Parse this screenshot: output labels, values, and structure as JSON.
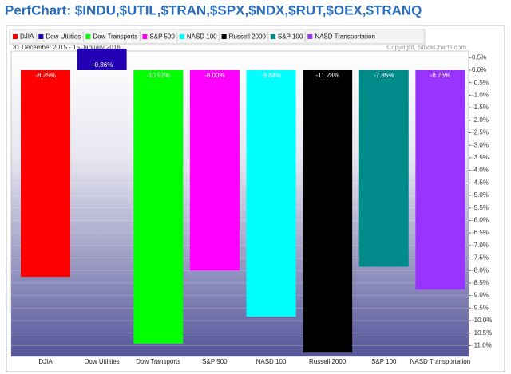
{
  "chart_data": {
    "type": "bar",
    "title": "PerfChart: $INDU,$UTIL,$TRAN,$SPX,$NDX,$RUT,$OEX,$TRANQ",
    "subtitle": "31 December 2015 - 15 January 2016",
    "annotation": "Copyright, StockCharts.com",
    "categories": [
      "DJIA",
      "Dow Utilities",
      "Dow Transports",
      "S&P 500",
      "NASD 100",
      "Russell 2000",
      "S&P 100",
      "NASD Transportation"
    ],
    "values": [
      -8.25,
      0.86,
      -10.92,
      -8.0,
      -9.84,
      -11.28,
      -7.85,
      -8.76
    ],
    "value_labels": [
      "-8.25%",
      "+0.86%",
      "-10.92%",
      "-8.00%",
      "-9.84%",
      "-11.28%",
      "-7.85%",
      "-8.76%"
    ],
    "colors": [
      "#ff0000",
      "#2200b4",
      "#00ff00",
      "#ff00ff",
      "#00ffff",
      "#000000",
      "#008b8b",
      "#9933ff"
    ],
    "ylim": [
      -11.4,
      0.7
    ],
    "yticks": [
      {
        "value": 0.5,
        "label": "0.5%"
      },
      {
        "value": 0,
        "label": "0.0%"
      },
      {
        "value": -0.5,
        "label": "-0.5%"
      },
      {
        "value": -1,
        "label": "-1.0%"
      },
      {
        "value": -1.5,
        "label": "-1.5%"
      },
      {
        "value": -2,
        "label": "-2.0%"
      },
      {
        "value": -2.5,
        "label": "-2.5%"
      },
      {
        "value": -3,
        "label": "-3.0%"
      },
      {
        "value": -3.5,
        "label": "-3.5%"
      },
      {
        "value": -4,
        "label": "-4.0%"
      },
      {
        "value": -4.5,
        "label": "-4.5%"
      },
      {
        "value": -5,
        "label": "-5.0%"
      },
      {
        "value": -5.5,
        "label": "-5.5%"
      },
      {
        "value": -6,
        "label": "-6.0%"
      },
      {
        "value": -6.5,
        "label": "-6.5%"
      },
      {
        "value": -7,
        "label": "-7.0%"
      },
      {
        "value": -7.5,
        "label": "-7.5%"
      },
      {
        "value": -8,
        "label": "-8.0%"
      },
      {
        "value": -8.5,
        "label": "-8.5%"
      },
      {
        "value": -9,
        "label": "-9.0%"
      },
      {
        "value": -9.5,
        "label": "-9.5%"
      },
      {
        "value": -10,
        "label": "-10.0%"
      },
      {
        "value": -10.5,
        "label": "-10.5%"
      },
      {
        "value": -11,
        "label": "-11.0%"
      }
    ],
    "grid": true,
    "legend": "top"
  }
}
